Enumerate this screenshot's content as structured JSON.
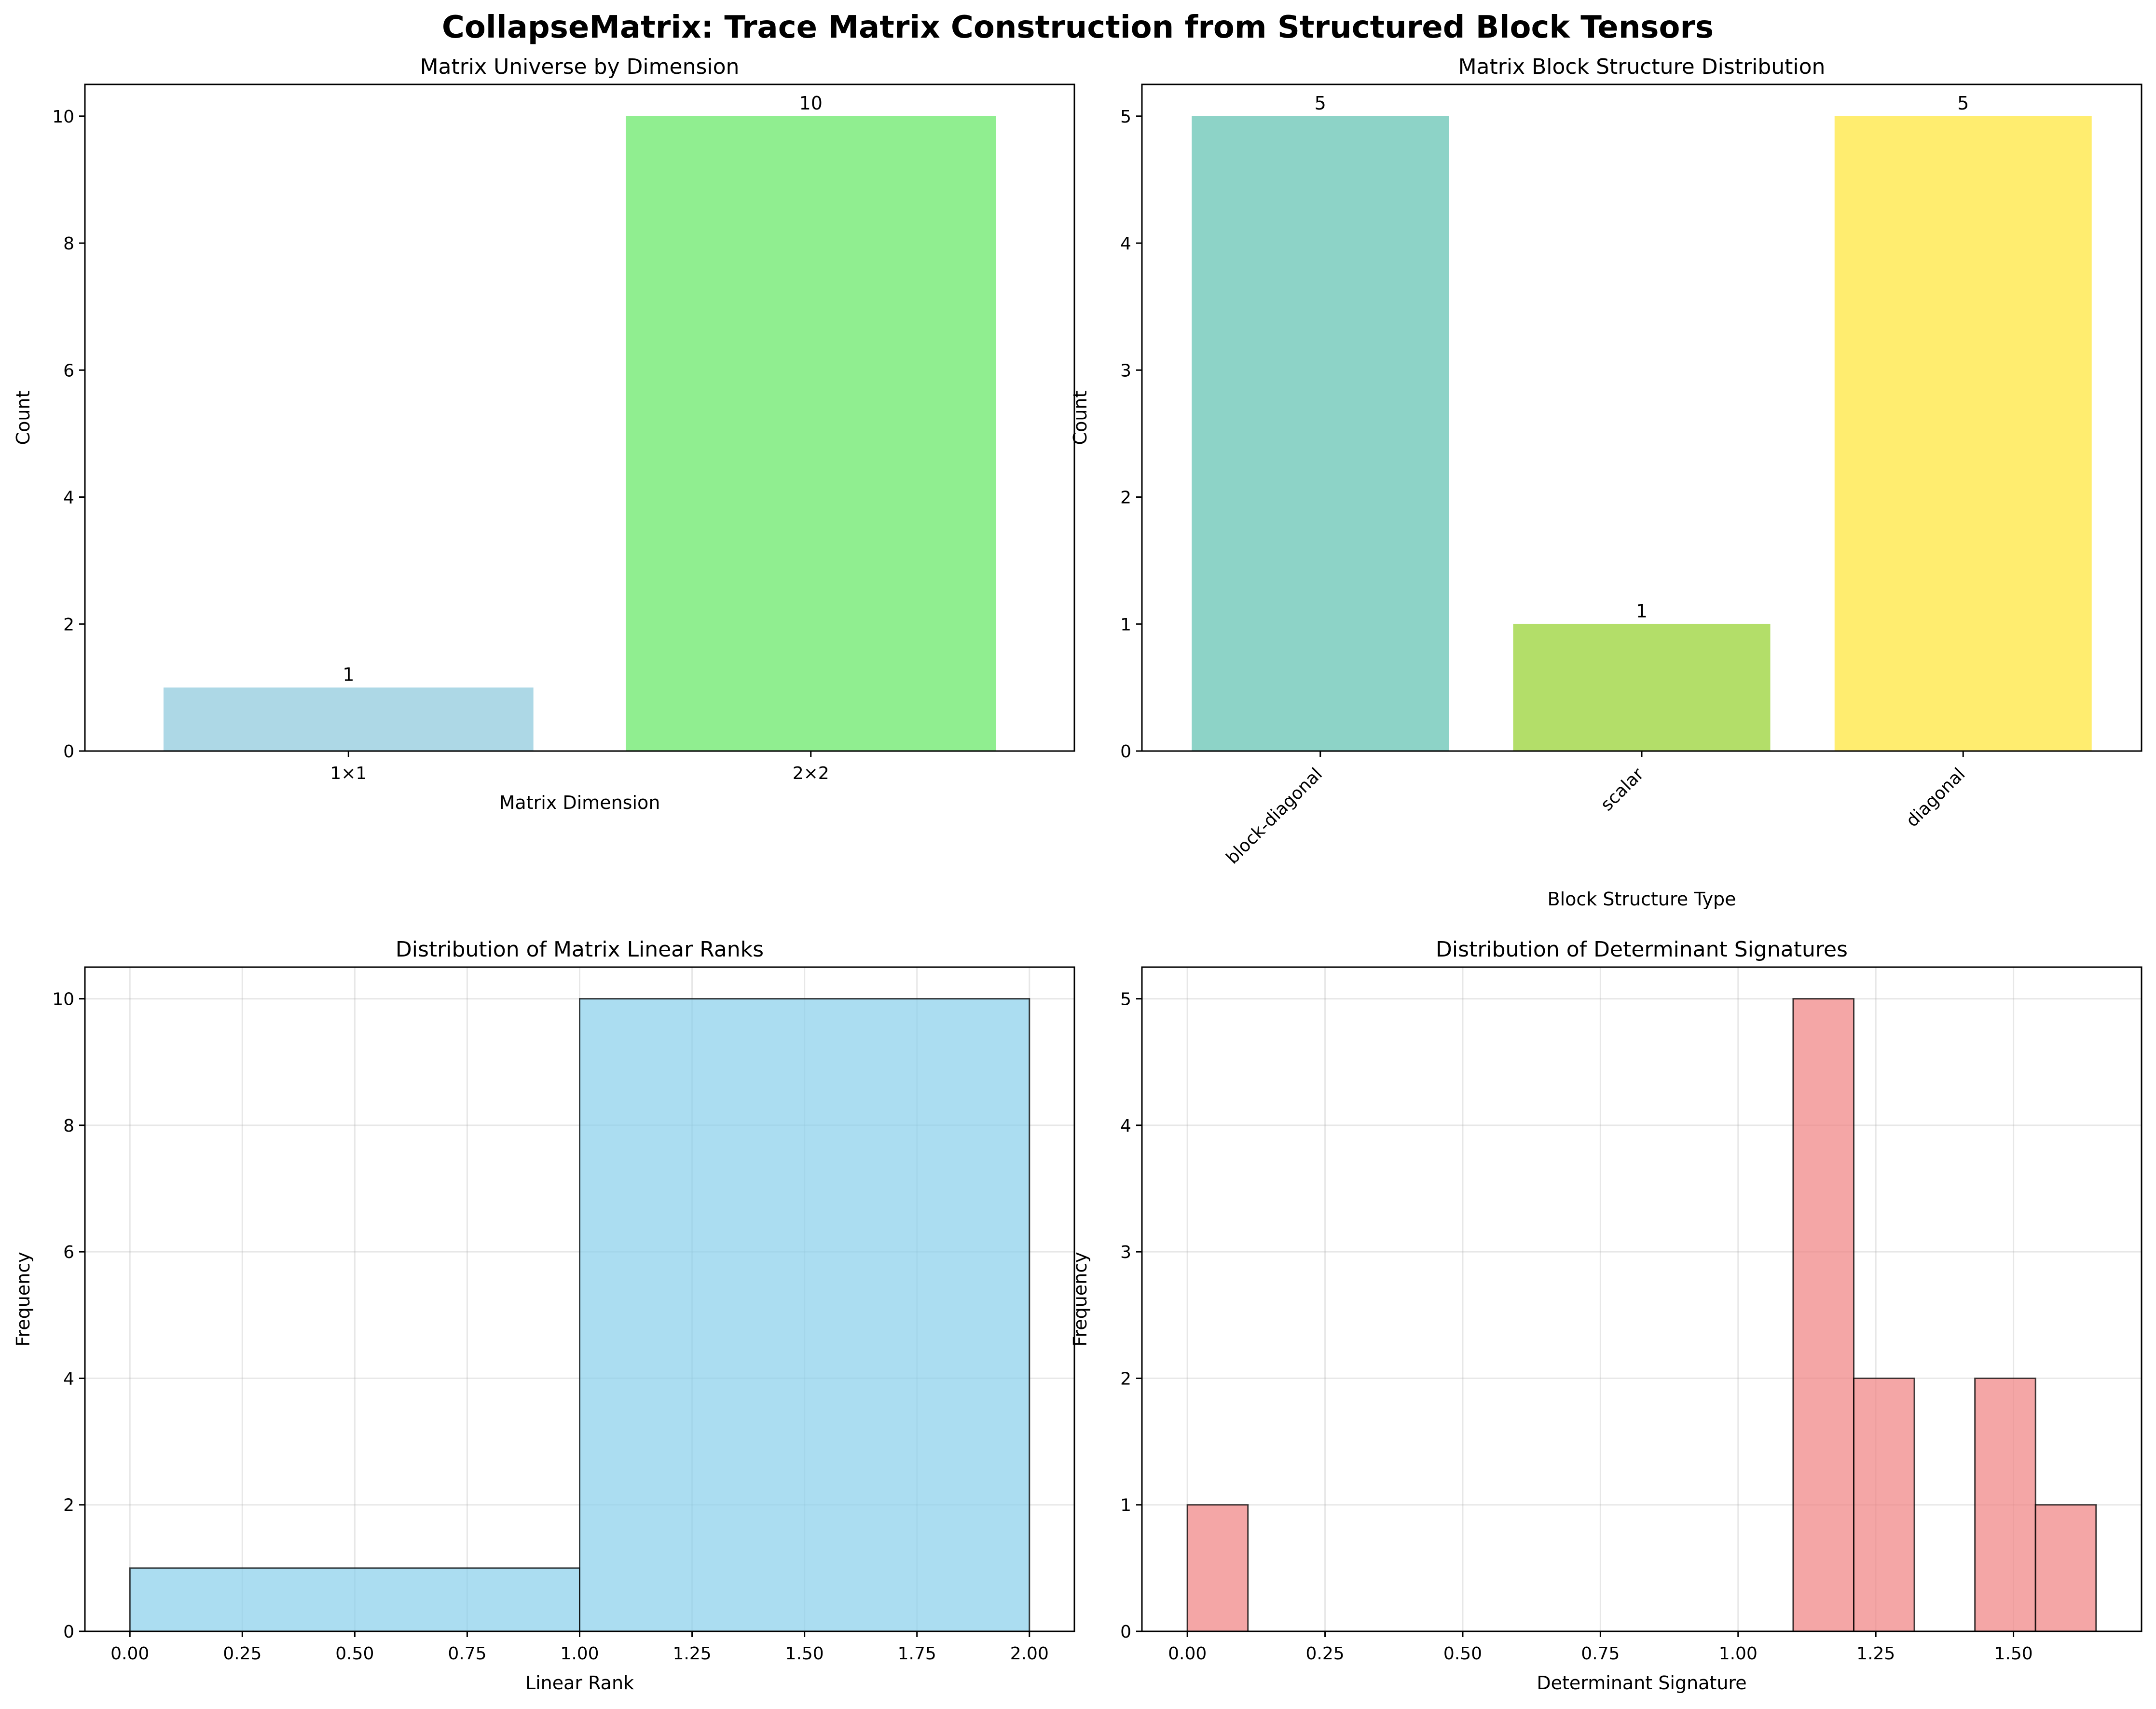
{
  "figure": {
    "title": "CollapseMatrix: Trace Matrix Construction from Structured Block Tensors"
  },
  "chart_data": [
    {
      "type": "bar",
      "title": "Matrix Universe by Dimension",
      "xlabel": "Matrix Dimension",
      "ylabel": "Count",
      "categories": [
        "1×1",
        "2×2"
      ],
      "values": [
        1,
        10
      ],
      "data_labels": [
        "1",
        "10"
      ],
      "colors": [
        "#add8e6",
        "#90ee90"
      ],
      "ylim": [
        0,
        10.5
      ],
      "yticks": [
        0,
        2,
        4,
        6,
        8,
        10
      ],
      "grid": false
    },
    {
      "type": "bar",
      "title": "Matrix Block Structure Distribution",
      "xlabel": "Block Structure Type",
      "ylabel": "Count",
      "categories": [
        "block-diagonal",
        "scalar",
        "diagonal"
      ],
      "values": [
        5,
        1,
        5
      ],
      "data_labels": [
        "5",
        "1",
        "5"
      ],
      "colors": [
        "#8dd3c7",
        "#b3de69",
        "#ffed6f"
      ],
      "ylim": [
        0,
        5.25
      ],
      "yticks": [
        0,
        1,
        2,
        3,
        4,
        5
      ],
      "grid": false
    },
    {
      "type": "bar",
      "subtype": "histogram",
      "title": "Distribution of Matrix Linear Ranks",
      "xlabel": "Linear Rank",
      "ylabel": "Frequency",
      "bins": [
        0,
        1,
        2
      ],
      "counts": [
        1,
        10
      ],
      "color": "#87ceeb",
      "xlim": [
        -0.1,
        2.1
      ],
      "ylim": [
        0,
        10.5
      ],
      "xticks": [
        "0.00",
        "0.25",
        "0.50",
        "0.75",
        "1.00",
        "1.25",
        "1.50",
        "1.75",
        "2.00"
      ],
      "yticks": [
        0,
        2,
        4,
        6,
        8,
        10
      ],
      "grid": true
    },
    {
      "type": "bar",
      "subtype": "histogram",
      "title": "Distribution of Determinant Signatures",
      "xlabel": "Determinant Signature",
      "ylabel": "Frequency",
      "bins": [
        0,
        0.11,
        0.22,
        0.33,
        0.44,
        0.55,
        0.66,
        0.77,
        0.88,
        0.99,
        1.1,
        1.21,
        1.32,
        1.43,
        1.54,
        1.65
      ],
      "counts": [
        1,
        0,
        0,
        0,
        0,
        0,
        0,
        0,
        0,
        0,
        5,
        2,
        0,
        2,
        1
      ],
      "color": "#f08080",
      "xlim": [
        -0.0825,
        1.7325
      ],
      "ylim": [
        0,
        5.25
      ],
      "xticks": [
        "0.00",
        "0.25",
        "0.50",
        "0.75",
        "1.00",
        "1.25",
        "1.50"
      ],
      "yticks": [
        0,
        1,
        2,
        3,
        4,
        5
      ],
      "grid": true
    }
  ]
}
